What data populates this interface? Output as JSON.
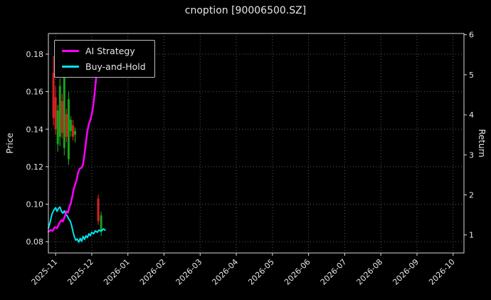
{
  "title": "cnoption [90006500.SZ]",
  "legend": {
    "items": [
      {
        "label": "AI Strategy",
        "color": "#ff00ff"
      },
      {
        "label": "Buy-and-Hold",
        "color": "#00e5ee"
      }
    ]
  },
  "colors": {
    "background": "#000000",
    "text": "#e6e6e6",
    "grid": "#585858",
    "spine": "#d9d9d9",
    "ai_strategy": "#ff00ff",
    "buy_and_hold": "#00e5ee",
    "candle_up": "#18a01c",
    "candle_down": "#d62222"
  },
  "chart_data": {
    "type": "line",
    "title": "cnoption [90006500.SZ]",
    "xlabel": "",
    "ylabel_left": "Price",
    "ylabel_right": "Return",
    "grid": true,
    "legend_position": "upper left",
    "x_tick_labels": [
      "2025-11",
      "2025-12",
      "2026-01",
      "2026-02",
      "2026-03",
      "2026-04",
      "2026-05",
      "2026-06",
      "2026-07",
      "2026-08",
      "2026-09",
      "2026-10"
    ],
    "xlim": [
      -0.2,
      11.3
    ],
    "ylim_left": [
      0.074,
      0.191
    ],
    "yticks_left": [
      0.08,
      0.1,
      0.12,
      0.14,
      0.16,
      0.18
    ],
    "ylim_right": [
      0.55,
      6.03
    ],
    "yticks_right": [
      1,
      2,
      3,
      4,
      5,
      6
    ],
    "series": [
      {
        "name": "Price candlesticks",
        "type": "candlestick",
        "axis": "left",
        "up_color": "#18a01c",
        "down_color": "#d62222",
        "candles": [
          {
            "x": -0.06,
            "open": 0.17,
            "high": 0.179,
            "low": 0.142,
            "close": 0.146
          },
          {
            "x": 0.0,
            "open": 0.157,
            "high": 0.163,
            "low": 0.137,
            "close": 0.14
          },
          {
            "x": 0.06,
            "open": 0.132,
            "high": 0.153,
            "low": 0.128,
            "close": 0.15
          },
          {
            "x": 0.12,
            "open": 0.136,
            "high": 0.167,
            "low": 0.131,
            "close": 0.163
          },
          {
            "x": 0.18,
            "open": 0.155,
            "high": 0.159,
            "low": 0.135,
            "close": 0.138
          },
          {
            "x": 0.24,
            "open": 0.13,
            "high": 0.172,
            "low": 0.126,
            "close": 0.168
          },
          {
            "x": 0.3,
            "open": 0.148,
            "high": 0.151,
            "low": 0.133,
            "close": 0.136
          },
          {
            "x": 0.36,
            "open": 0.124,
            "high": 0.16,
            "low": 0.121,
            "close": 0.156
          },
          {
            "x": 0.42,
            "open": 0.139,
            "high": 0.147,
            "low": 0.136,
            "close": 0.145
          },
          {
            "x": 0.48,
            "open": 0.142,
            "high": 0.145,
            "low": 0.134,
            "close": 0.136
          },
          {
            "x": 0.54,
            "open": 0.137,
            "high": 0.141,
            "low": 0.133,
            "close": 0.139
          },
          {
            "x": 1.18,
            "open": 0.103,
            "high": 0.105,
            "low": 0.089,
            "close": 0.091
          },
          {
            "x": 1.26,
            "open": 0.086,
            "high": 0.096,
            "low": 0.083,
            "close": 0.094
          }
        ]
      },
      {
        "name": "Buy-and-Hold",
        "type": "line",
        "axis": "left",
        "color": "#00e5ee",
        "width": 2,
        "points": [
          [
            -0.2,
            0.0872
          ],
          [
            -0.15,
            0.0905
          ],
          [
            -0.1,
            0.0948
          ],
          [
            -0.05,
            0.0968
          ],
          [
            0.0,
            0.0982
          ],
          [
            0.04,
            0.0962
          ],
          [
            0.08,
            0.0978
          ],
          [
            0.12,
            0.0985
          ],
          [
            0.16,
            0.0962
          ],
          [
            0.2,
            0.0952
          ],
          [
            0.24,
            0.0965
          ],
          [
            0.28,
            0.0945
          ],
          [
            0.32,
            0.0938
          ],
          [
            0.36,
            0.0922
          ],
          [
            0.4,
            0.0912
          ],
          [
            0.44,
            0.0888
          ],
          [
            0.48,
            0.0855
          ],
          [
            0.52,
            0.0825
          ],
          [
            0.56,
            0.0808
          ],
          [
            0.6,
            0.0815
          ],
          [
            0.64,
            0.0798
          ],
          [
            0.68,
            0.0818
          ],
          [
            0.72,
            0.0802
          ],
          [
            0.76,
            0.0828
          ],
          [
            0.8,
            0.0812
          ],
          [
            0.84,
            0.0832
          ],
          [
            0.88,
            0.0822
          ],
          [
            0.92,
            0.0842
          ],
          [
            0.96,
            0.0832
          ],
          [
            1.0,
            0.085
          ],
          [
            1.05,
            0.0842
          ],
          [
            1.1,
            0.0858
          ],
          [
            1.15,
            0.085
          ],
          [
            1.2,
            0.0862
          ],
          [
            1.26,
            0.0856
          ],
          [
            1.32,
            0.0868
          ],
          [
            1.37,
            0.0862
          ]
        ]
      },
      {
        "name": "AI Strategy",
        "type": "line",
        "axis": "left",
        "color": "#ff00ff",
        "width": 2.5,
        "points": [
          [
            -0.2,
            0.0853
          ],
          [
            -0.14,
            0.0862
          ],
          [
            -0.08,
            0.0858
          ],
          [
            -0.02,
            0.0878
          ],
          [
            0.04,
            0.0872
          ],
          [
            0.1,
            0.0898
          ],
          [
            0.16,
            0.0915
          ],
          [
            0.2,
            0.0908
          ],
          [
            0.26,
            0.0938
          ],
          [
            0.3,
            0.0962
          ],
          [
            0.34,
            0.0955
          ],
          [
            0.38,
            0.0985
          ],
          [
            0.42,
            0.1005
          ],
          [
            0.46,
            0.104
          ],
          [
            0.5,
            0.108
          ],
          [
            0.54,
            0.1105
          ],
          [
            0.58,
            0.1128
          ],
          [
            0.62,
            0.1165
          ],
          [
            0.66,
            0.1188
          ],
          [
            0.72,
            0.1195
          ],
          [
            0.76,
            0.1212
          ],
          [
            0.8,
            0.1268
          ],
          [
            0.84,
            0.133
          ],
          [
            0.88,
            0.139
          ],
          [
            0.92,
            0.1428
          ],
          [
            0.96,
            0.1448
          ],
          [
            1.0,
            0.1478
          ],
          [
            1.04,
            0.1525
          ],
          [
            1.08,
            0.1592
          ],
          [
            1.12,
            0.1668
          ],
          [
            1.16,
            0.176
          ],
          [
            1.2,
            0.1848
          ]
        ]
      }
    ]
  }
}
